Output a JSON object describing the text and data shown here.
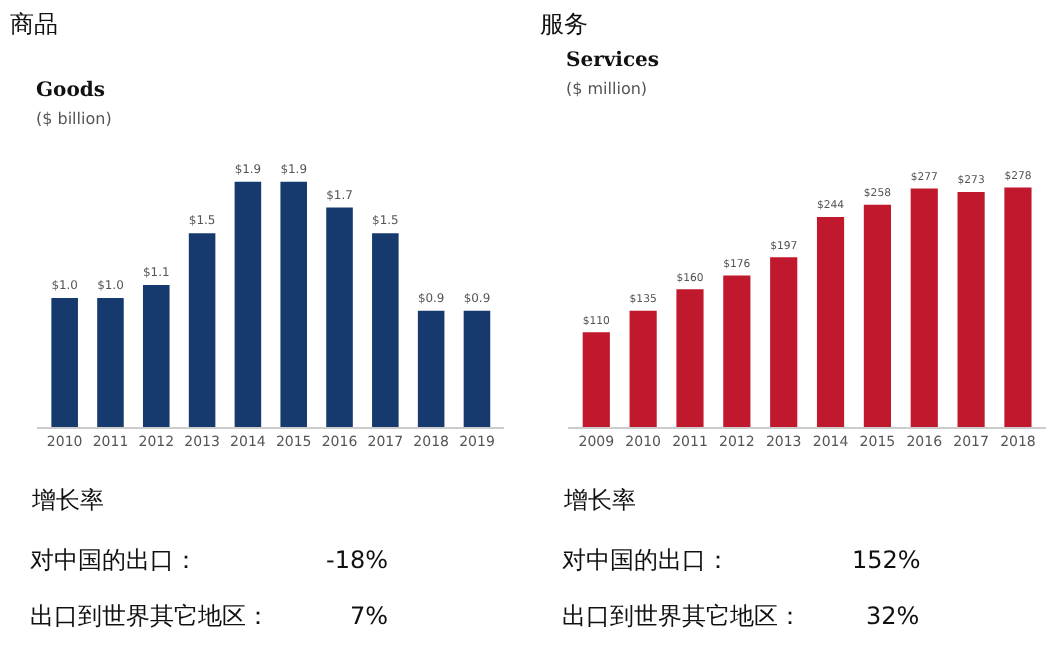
{
  "chart_data": [
    {
      "type": "bar",
      "title": "商品",
      "subtitle": "Goods",
      "categories": [
        "2010",
        "2011",
        "2012",
        "2013",
        "2014",
        "2015",
        "2016",
        "2017",
        "2018",
        "2019"
      ],
      "values": [
        1.0,
        1.0,
        1.1,
        1.5,
        1.9,
        1.9,
        1.7,
        1.5,
        0.9,
        0.9
      ],
      "value_labels": [
        "$1.0",
        "$1.0",
        "$1.1",
        "$1.5",
        "$1.9",
        "$1.9",
        "$1.7",
        "$1.5",
        "$0.9",
        "$0.9"
      ],
      "color": "#173a6e",
      "tick_labels": "x",
      "annotations": [
        "($ billion)",
        "增长率",
        "对中国的出口：",
        "-18%",
        "出口到世界其它地区：",
        "7%"
      ]
    },
    {
      "type": "bar",
      "title": "服务",
      "subtitle": "Services",
      "categories": [
        "2009",
        "2010",
        "2011",
        "2012",
        "2013",
        "2014",
        "2015",
        "2016",
        "2017",
        "2018"
      ],
      "values": [
        110,
        135,
        160,
        176,
        197,
        244,
        258,
        277,
        273,
        278
      ],
      "value_labels": [
        "$110",
        "$135",
        "$160",
        "$176",
        "$197",
        "$244",
        "$258",
        "$277",
        "$273",
        "$278"
      ],
      "color": "#c0182c",
      "tick_labels": "x",
      "annotations": [
        "($ million)",
        "增长率",
        "对中国的出口：",
        "152%",
        "出口到世界其它地区：",
        "32%"
      ]
    }
  ]
}
